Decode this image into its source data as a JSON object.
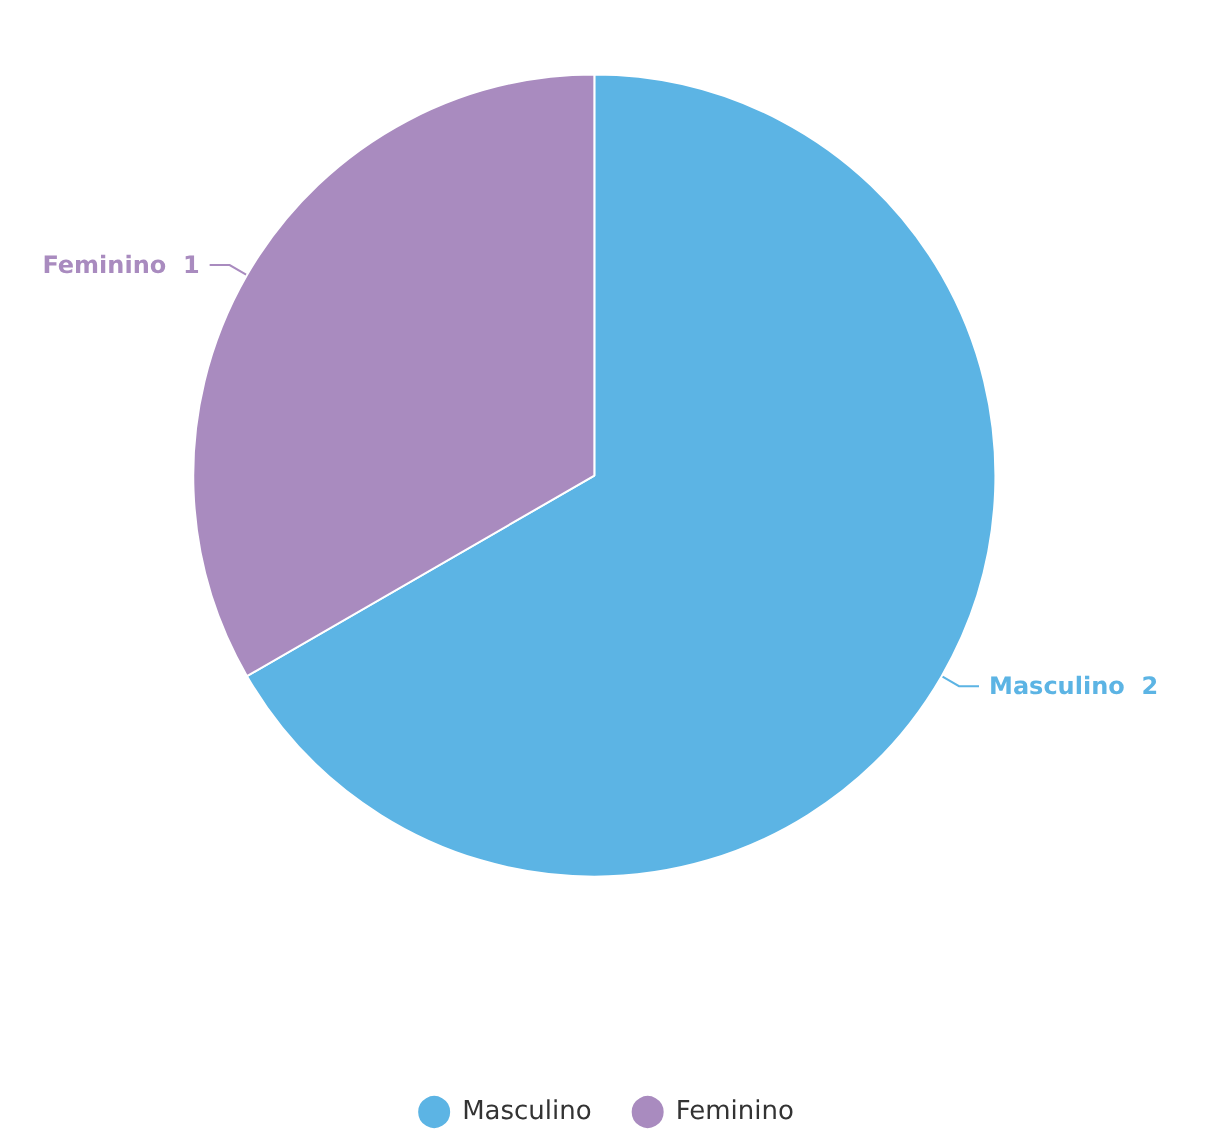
{
  "chart_data": {
    "type": "pie",
    "categories": [
      "Masculino",
      "Feminino"
    ],
    "values": [
      2,
      1
    ],
    "colors": [
      "#5cb4e4",
      "#a98bbf"
    ],
    "data_labels": true,
    "legend": "bottom"
  }
}
